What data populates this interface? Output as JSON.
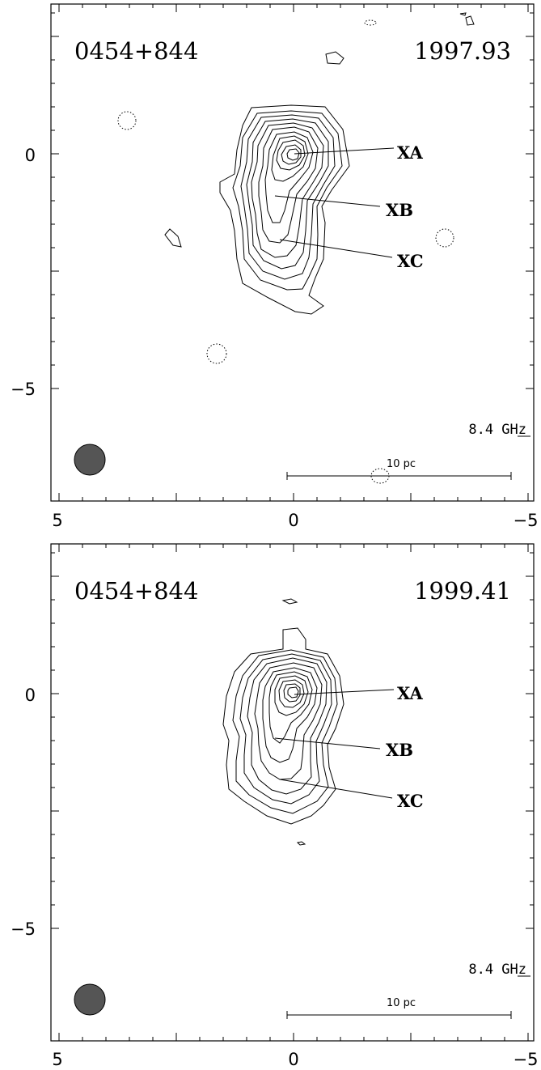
{
  "panels": [
    {
      "source": "0454+844",
      "epoch": "1997.93",
      "frequency": "8.4 GHz",
      "scale_label": "10 pc",
      "components": [
        "XA",
        "XB",
        "XC"
      ],
      "y_tick_labels": [
        "0",
        "−5"
      ],
      "x_tick_labels": [
        "5",
        "0",
        "−5"
      ]
    },
    {
      "source": "0454+844",
      "epoch": "1999.41",
      "frequency": "8.4 GHz",
      "scale_label": "10 pc",
      "components": [
        "XA",
        "XB",
        "XC"
      ],
      "y_tick_labels": [
        "0",
        "−5"
      ],
      "x_tick_labels": [
        "5",
        "0",
        "−5"
      ]
    }
  ],
  "colors": {
    "beam": "#555555",
    "ink": "#000000"
  }
}
